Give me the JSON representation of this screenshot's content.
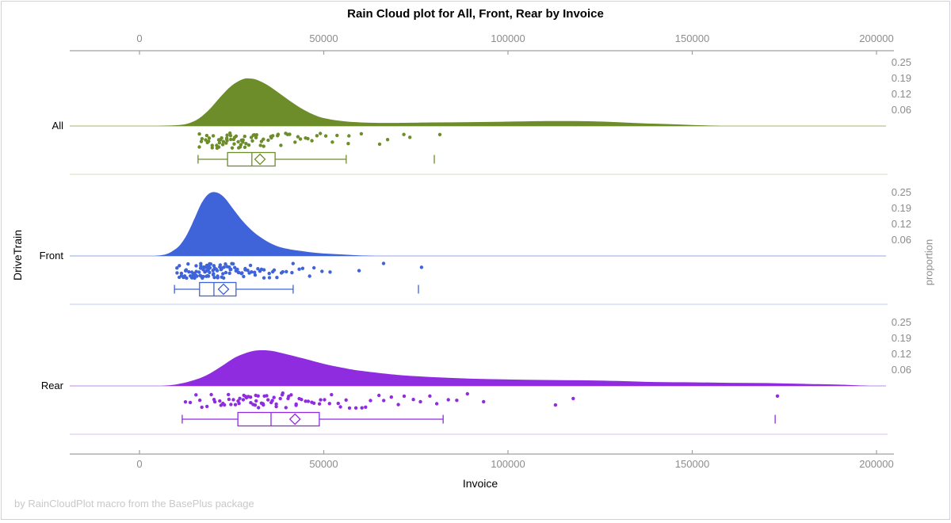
{
  "title": "Rain Cloud plot for All, Front, Rear by Invoice",
  "footer": "by RainCloudPlot macro from the BasePlus package",
  "axes": {
    "x_label": "Invoice",
    "y_label": "DriveTrain",
    "right_label": "proportion",
    "x_ticks": [
      0,
      50000,
      100000,
      150000,
      200000
    ],
    "x_range": [
      0,
      200000
    ],
    "proportion_ticks": [
      "0.25",
      "0.19",
      "0.12",
      "0.06"
    ]
  },
  "colors": {
    "frame": "#cfd2da",
    "axis_line": "#a0a0a0",
    "tick_text": "#8c8c8c",
    "label_text": "#000000",
    "footer_text": "#c9c9c9"
  },
  "chart_data": {
    "type": "raincloud",
    "title": "Rain Cloud plot for All, Front, Rear by Invoice",
    "xlabel": "Invoice",
    "ylabel": "DriveTrain",
    "right_axis_label": "proportion",
    "x_range": [
      0,
      200000
    ],
    "x_ticks": [
      0,
      50000,
      100000,
      150000,
      200000
    ],
    "proportion_ticks": [
      0.25,
      0.19,
      0.12,
      0.06
    ],
    "groups": [
      {
        "name": "All",
        "colors": {
          "fill": "#6D8C2A",
          "baseline": "#b6c28a",
          "separator": "#dde3cc"
        },
        "density": {
          "x": [
            5000,
            10000,
            13000,
            16000,
            19000,
            22000,
            25000,
            28000,
            30000,
            32000,
            35000,
            38000,
            41000,
            44000,
            47000,
            50000,
            55000,
            60000,
            65000,
            70000,
            80000,
            90000,
            100000,
            110000,
            118000,
            126000,
            134000,
            142000,
            150000,
            158000
          ],
          "p": [
            0,
            0.003,
            0.009,
            0.028,
            0.065,
            0.114,
            0.157,
            0.182,
            0.185,
            0.179,
            0.157,
            0.127,
            0.096,
            0.068,
            0.046,
            0.031,
            0.019,
            0.014,
            0.012,
            0.012,
            0.014,
            0.015,
            0.017,
            0.019,
            0.019,
            0.017,
            0.012,
            0.008,
            0.004,
            0
          ]
        },
        "box": {
          "low": 15900,
          "q1": 23900,
          "median": 30500,
          "q3": 36800,
          "high": 56100,
          "mean": 32700,
          "outliers": [
            80000
          ]
        },
        "rain": [
          16100,
          16600,
          17000,
          17300,
          17900,
          18400,
          18450,
          19000,
          19200,
          19600,
          20100,
          20200,
          20700,
          21000,
          21300,
          21350,
          21800,
          22000,
          22400,
          22600,
          22900,
          23200,
          23300,
          23700,
          23900,
          24100,
          24400,
          24600,
          24900,
          25100,
          25400,
          25600,
          25900,
          26200,
          26400,
          26700,
          27000,
          27300,
          27600,
          27900,
          28200,
          28500,
          28900,
          29200,
          29600,
          30000,
          30400,
          30800,
          31200,
          31700,
          32100,
          32600,
          33100,
          33600,
          34100,
          34700,
          35300,
          35900,
          36500,
          37200,
          37900,
          38600,
          39400,
          40200,
          41000,
          41900,
          42800,
          43800,
          44800,
          45900,
          47000,
          48200,
          49500,
          50800,
          52200,
          53700,
          56400,
          56700,
          60500,
          64900,
          66900,
          71600,
          73400,
          81500
        ]
      },
      {
        "name": "Front",
        "colors": {
          "fill": "#3F63D8",
          "baseline": "#a7bbea",
          "separator": "#ccd8f4"
        },
        "density": {
          "x": [
            4000,
            7000,
            9000,
            11000,
            13000,
            15000,
            17000,
            19000,
            21000,
            23000,
            25000,
            28000,
            31000,
            34000,
            37000,
            40000,
            44000,
            48000,
            52000,
            56000,
            60000,
            64000
          ],
          "p": [
            0,
            0.006,
            0.019,
            0.043,
            0.086,
            0.148,
            0.21,
            0.244,
            0.247,
            0.228,
            0.191,
            0.136,
            0.093,
            0.062,
            0.04,
            0.028,
            0.019,
            0.012,
            0.008,
            0.005,
            0.002,
            0
          ]
        },
        "box": {
          "low": 9500,
          "q1": 16300,
          "median": 20200,
          "q3": 26200,
          "high": 41700,
          "mean": 22800,
          "outliers": [
            75700
          ]
        },
        "rain": [
          10000,
          10400,
          10700,
          11000,
          11300,
          11600,
          11900,
          12100,
          12400,
          12600,
          12900,
          13100,
          13300,
          13500,
          13700,
          13900,
          14100,
          14300,
          14500,
          14700,
          14900,
          15100,
          15250,
          15400,
          15550,
          15700,
          15850,
          16000,
          16150,
          16300,
          16450,
          16600,
          16750,
          16900,
          17050,
          17200,
          17350,
          17500,
          17650,
          17800,
          17950,
          18100,
          18250,
          18400,
          18550,
          18700,
          18850,
          19000,
          19150,
          19300,
          19450,
          19600,
          19750,
          19900,
          20050,
          20200,
          20400,
          20600,
          20800,
          21000,
          21200,
          21400,
          21600,
          21800,
          22000,
          22200,
          22400,
          22600,
          22800,
          23000,
          23200,
          23500,
          23700,
          24000,
          24200,
          24500,
          24700,
          25000,
          25300,
          25600,
          25900,
          26200,
          26500,
          26800,
          27100,
          27400,
          27800,
          28100,
          28500,
          28900,
          29300,
          29700,
          30100,
          30500,
          31000,
          31500,
          32000,
          32500,
          33000,
          33600,
          34200,
          34800,
          35400,
          36100,
          36800,
          37500,
          38300,
          39100,
          40000,
          41000,
          42100,
          43300,
          44600,
          46000,
          47600,
          49300,
          52000,
          59500,
          66000,
          76500
        ]
      },
      {
        "name": "Rear",
        "colors": {
          "fill": "#8F2CDF",
          "baseline": "#c9a2ec",
          "separator": "#e3cef6"
        },
        "density": {
          "x": [
            6000,
            10000,
            14000,
            18000,
            22000,
            26000,
            30000,
            33000,
            36000,
            40000,
            45000,
            50000,
            55000,
            60000,
            70000,
            80000,
            90000,
            100000,
            110000,
            120000,
            130000,
            140000,
            150000,
            160000,
            170000,
            180000,
            190000,
            198000
          ],
          "p": [
            0,
            0.006,
            0.019,
            0.04,
            0.074,
            0.111,
            0.133,
            0.139,
            0.136,
            0.123,
            0.105,
            0.086,
            0.071,
            0.059,
            0.043,
            0.034,
            0.028,
            0.025,
            0.023,
            0.022,
            0.019,
            0.015,
            0.014,
            0.012,
            0.011,
            0.008,
            0.005,
            0
          ]
        },
        "box": {
          "low": 11600,
          "q1": 26700,
          "median": 35700,
          "q3": 48800,
          "high": 82400,
          "mean": 42200,
          "outliers": [
            172500
          ]
        },
        "rain": [
          12200,
          13500,
          15000,
          16200,
          17300,
          18300,
          19200,
          20000,
          20800,
          21500,
          22200,
          22800,
          23400,
          24000,
          24500,
          25000,
          25500,
          26000,
          26500,
          27000,
          27400,
          27900,
          28300,
          28700,
          29100,
          29500,
          29900,
          30300,
          30700,
          31100,
          31500,
          31900,
          32300,
          32700,
          33100,
          33500,
          33900,
          34300,
          34700,
          35100,
          35600,
          36000,
          36500,
          37000,
          37500,
          38000,
          38500,
          39100,
          39700,
          40300,
          40900,
          41500,
          42200,
          42900,
          43600,
          44300,
          45100,
          45900,
          46700,
          47600,
          48500,
          49400,
          50400,
          51400,
          52500,
          53600,
          54800,
          56000,
          57300,
          58600,
          60000,
          61500,
          63000,
          64600,
          66300,
          68100,
          70000,
          72000,
          74100,
          76300,
          78600,
          81000,
          83500,
          86200,
          89000,
          93000,
          112500,
          118000,
          173500
        ]
      }
    ]
  }
}
